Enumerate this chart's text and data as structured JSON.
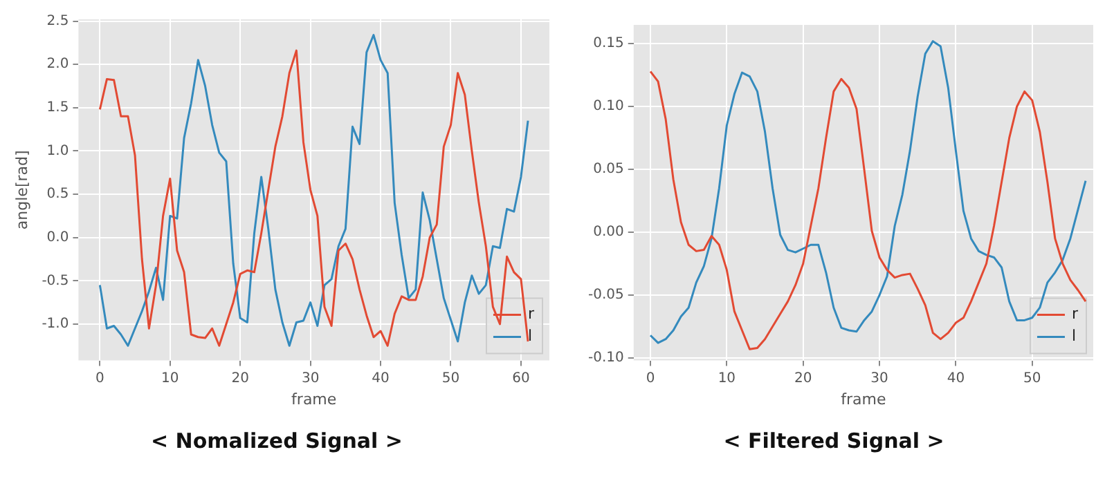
{
  "chart_data": [
    {
      "type": "line",
      "title": "< Nomalized Signal >",
      "xlabel": "frame",
      "ylabel": "angle[rad]",
      "xlim": [
        -3.05,
        64.05
      ],
      "ylim": [
        -1.42,
        2.52
      ],
      "xticks": [
        0,
        10,
        20,
        30,
        40,
        50,
        60
      ],
      "yticks": [
        {
          "value": -1,
          "label": "-1.0"
        },
        -0.5,
        {
          "value": 0,
          "label": "0.0"
        },
        0.5,
        {
          "value": 1,
          "label": "1.0"
        },
        1.5,
        {
          "value": 2,
          "label": "2.0"
        },
        2.5
      ],
      "grid": true,
      "legend": "bottom right",
      "x": [
        0,
        1,
        2,
        3,
        4,
        5,
        6,
        7,
        8,
        9,
        10,
        11,
        12,
        13,
        14,
        15,
        16,
        17,
        18,
        19,
        20,
        21,
        22,
        23,
        24,
        25,
        26,
        27,
        28,
        29,
        30,
        31,
        32,
        33,
        34,
        35,
        36,
        37,
        38,
        39,
        40,
        41,
        42,
        43,
        44,
        45,
        46,
        47,
        48,
        49,
        50,
        51,
        52,
        53,
        54,
        55,
        56,
        57,
        58,
        59,
        60,
        61
      ],
      "series": [
        {
          "name": "r",
          "color": "#e24a33",
          "values": [
            1.48,
            1.83,
            1.82,
            1.4,
            1.4,
            0.95,
            -0.25,
            -1.05,
            -0.55,
            0.25,
            0.68,
            -0.15,
            -0.4,
            -1.12,
            -1.15,
            -1.16,
            -1.05,
            -1.25,
            -1.0,
            -0.75,
            -0.42,
            -0.38,
            -0.4,
            0.05,
            0.55,
            1.05,
            1.4,
            1.9,
            2.16,
            1.1,
            0.55,
            0.25,
            -0.8,
            -1.02,
            -0.15,
            -0.07,
            -0.25,
            -0.6,
            -0.9,
            -1.15,
            -1.08,
            -1.25,
            -0.88,
            -0.68,
            -0.72,
            -0.72,
            -0.45,
            0.0,
            0.15,
            1.05,
            1.3,
            1.9,
            1.65,
            1.0,
            0.4,
            -0.1,
            -0.8,
            -1.0,
            -0.22,
            -0.4,
            -0.48,
            -1.2
          ]
        },
        {
          "name": "l",
          "color": "#348abd",
          "values": [
            -0.55,
            -1.05,
            -1.02,
            -1.12,
            -1.25,
            -1.05,
            -0.85,
            -0.62,
            -0.35,
            -0.72,
            0.25,
            0.22,
            1.15,
            1.55,
            2.05,
            1.75,
            1.3,
            0.98,
            0.88,
            -0.3,
            -0.93,
            -0.98,
            0.05,
            0.7,
            0.1,
            -0.6,
            -0.98,
            -1.25,
            -0.98,
            -0.96,
            -0.75,
            -1.02,
            -0.55,
            -0.48,
            -0.1,
            0.1,
            1.28,
            1.08,
            2.14,
            2.34,
            2.05,
            1.9,
            0.4,
            -0.2,
            -0.7,
            -0.6,
            0.52,
            0.2,
            -0.25,
            -0.7,
            -0.95,
            -1.2,
            -0.75,
            -0.44,
            -0.65,
            -0.55,
            -0.1,
            -0.12,
            0.33,
            0.3,
            0.7,
            1.35
          ]
        }
      ]
    },
    {
      "type": "line",
      "title": "< Filtered Signal >",
      "xlabel": "frame",
      "xlim": [
        -2.2,
        58.0
      ],
      "ylim": [
        -0.102,
        0.165
      ],
      "xticks": [
        0,
        10,
        20,
        30,
        40,
        50
      ],
      "yticks": [
        {
          "value": -0.1,
          "label": "-0.10"
        },
        -0.05,
        {
          "value": 0,
          "label": "0.00"
        },
        0.05,
        {
          "value": 0.1,
          "label": "0.10"
        },
        0.15
      ],
      "grid": true,
      "legend": "bottom right",
      "x": [
        0,
        1,
        2,
        3,
        4,
        5,
        6,
        7,
        8,
        9,
        10,
        11,
        12,
        13,
        14,
        15,
        16,
        17,
        18,
        19,
        20,
        21,
        22,
        23,
        24,
        25,
        26,
        27,
        28,
        29,
        30,
        31,
        32,
        33,
        34,
        35,
        36,
        37,
        38,
        39,
        40,
        41,
        42,
        43,
        44,
        45,
        46,
        47,
        48,
        49,
        50,
        51,
        52,
        53,
        54,
        55,
        56,
        57
      ],
      "series": [
        {
          "name": "r",
          "color": "#e24a33",
          "values": [
            0.128,
            0.12,
            0.09,
            0.042,
            0.008,
            -0.01,
            -0.015,
            -0.014,
            -0.003,
            -0.01,
            -0.03,
            -0.063,
            -0.078,
            -0.093,
            -0.092,
            -0.085,
            -0.075,
            -0.065,
            -0.055,
            -0.042,
            -0.025,
            0.005,
            0.035,
            0.075,
            0.112,
            0.122,
            0.115,
            0.098,
            0.05,
            0.001,
            -0.02,
            -0.03,
            -0.036,
            -0.034,
            -0.033,
            -0.045,
            -0.058,
            -0.08,
            -0.085,
            -0.08,
            -0.072,
            -0.068,
            -0.055,
            -0.04,
            -0.025,
            0.005,
            0.04,
            0.075,
            0.1,
            0.112,
            0.105,
            0.08,
            0.04,
            -0.005,
            -0.025,
            -0.038,
            -0.046,
            -0.055
          ]
        },
        {
          "name": "l",
          "color": "#348abd",
          "values": [
            -0.082,
            -0.088,
            -0.085,
            -0.078,
            -0.067,
            -0.06,
            -0.04,
            -0.027,
            -0.005,
            0.035,
            0.085,
            0.11,
            0.127,
            0.124,
            0.112,
            0.08,
            0.035,
            -0.002,
            -0.014,
            -0.016,
            -0.013,
            -0.01,
            -0.01,
            -0.032,
            -0.06,
            -0.076,
            -0.078,
            -0.079,
            -0.07,
            -0.063,
            -0.05,
            -0.035,
            0.005,
            0.03,
            0.065,
            0.108,
            0.142,
            0.152,
            0.148,
            0.115,
            0.065,
            0.017,
            -0.005,
            -0.015,
            -0.018,
            -0.02,
            -0.028,
            -0.055,
            -0.07,
            -0.07,
            -0.068,
            -0.06,
            -0.04,
            -0.032,
            -0.022,
            -0.005,
            0.018,
            0.041
          ]
        }
      ]
    }
  ]
}
